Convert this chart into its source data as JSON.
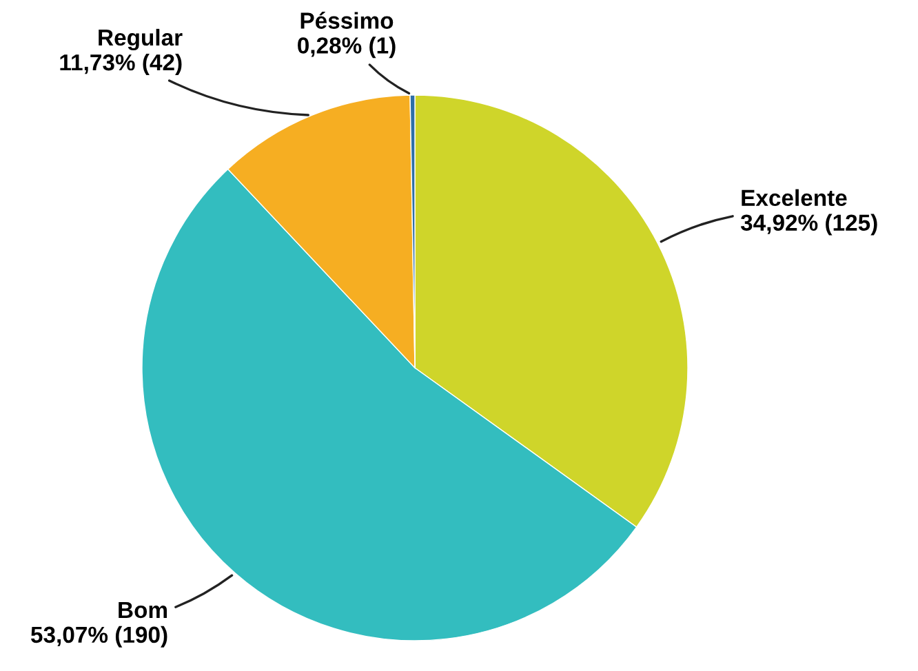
{
  "chart_data": {
    "type": "pie",
    "categories": [
      "Excelente",
      "Bom",
      "Regular",
      "Péssimo"
    ],
    "values": [
      125,
      190,
      42,
      1
    ],
    "colors": [
      "#cfd52a",
      "#33bdbf",
      "#f6ae22",
      "#2e6fa7"
    ],
    "value_labels": [
      "34,92% (125)",
      "53,07% (190)",
      "11,73% (42)",
      "0,28% (1)"
    ],
    "legend": false
  }
}
